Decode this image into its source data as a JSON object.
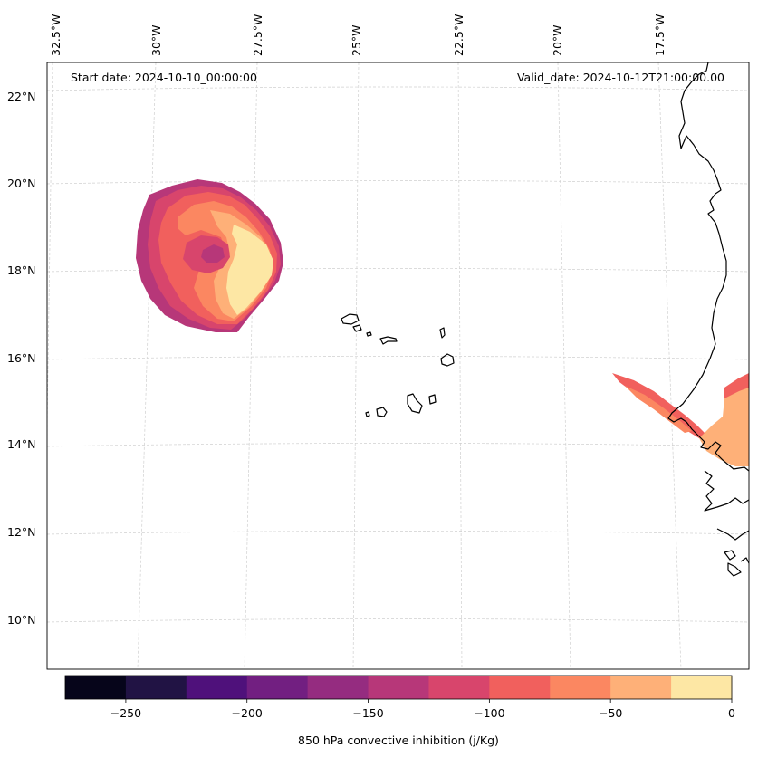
{
  "header": {
    "start_date": "Start date: 2024-10-10_00:00:00",
    "valid_date": "Valid_date: 2024-10-12T21:00:00.00"
  },
  "map": {
    "lon_labels": [
      "32.5°W",
      "30°W",
      "27.5°W",
      "25°W",
      "22.5°W",
      "20°W",
      "17.5°W"
    ],
    "lat_labels": [
      "22°N",
      "20°N",
      "18°N",
      "16°N",
      "14°N",
      "12°N",
      "10°N"
    ],
    "field": "850 hPa convective inhibition"
  },
  "colorbar": {
    "label": "850 hPa convective inhibition (j/Kg)",
    "tick_labels": [
      "−250",
      "−200",
      "−150",
      "−100",
      "−50",
      "0"
    ],
    "levels": [
      -275,
      -250,
      -225,
      -200,
      -175,
      -150,
      -125,
      -100,
      -75,
      -50,
      -25,
      0
    ],
    "colors": [
      "#06051a",
      "#211344",
      "#4f117b",
      "#721f81",
      "#952c80",
      "#b73779",
      "#d8456c",
      "#f1605d",
      "#fb8761",
      "#feb078",
      "#fde7a4"
    ]
  }
}
